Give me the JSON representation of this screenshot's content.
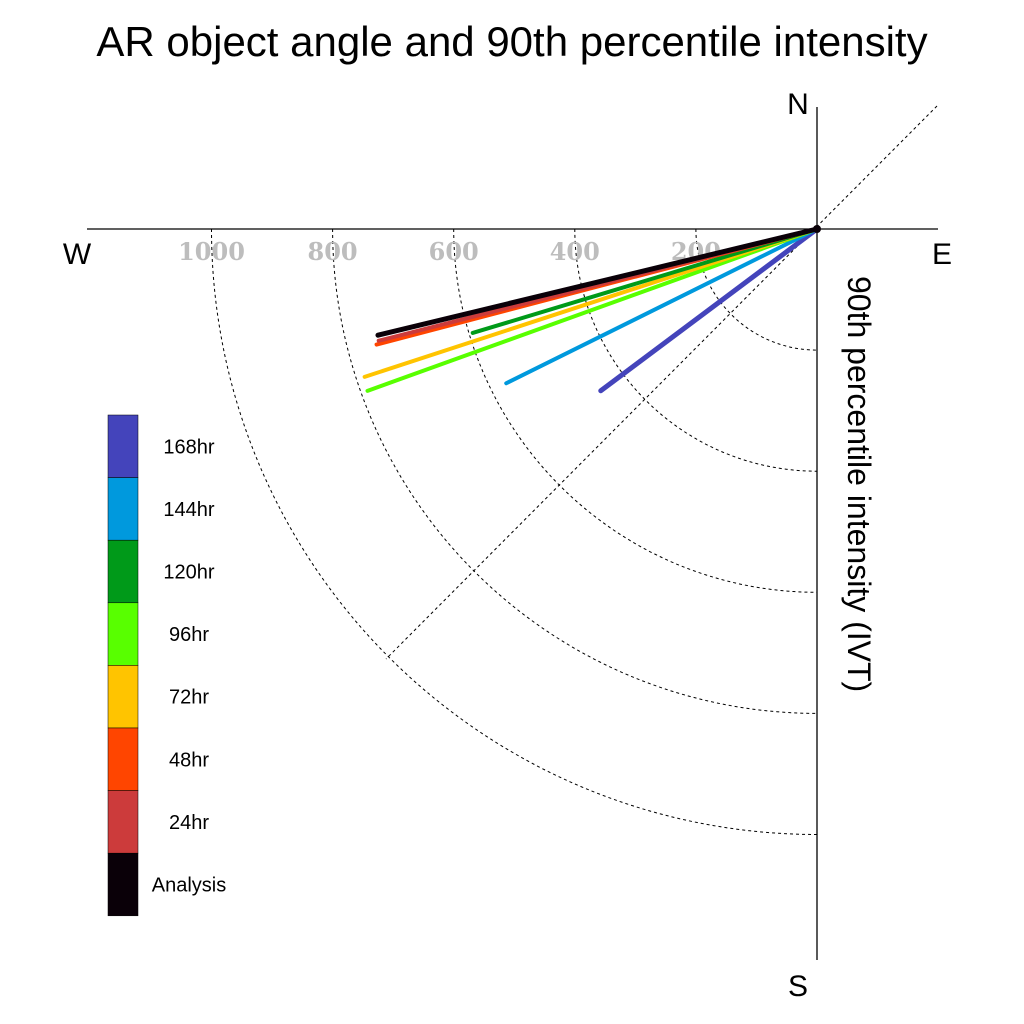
{
  "chart_data": {
    "type": "polar-vector",
    "title": "AR object angle and 90th percentile intensity",
    "radial_label": "90th percentile intensity (IVT)",
    "compass": {
      "north": "N",
      "south": "S",
      "east": "E",
      "west": "W"
    },
    "radial_ticks": [
      200,
      400,
      600,
      800,
      1000
    ],
    "radial_range": [
      0,
      1200
    ],
    "angle_units": "degrees clockwise from north",
    "grid": true,
    "legend_position": "left",
    "series": [
      {
        "name": "Analysis",
        "color": "#0a0008",
        "angle": 256.4,
        "intensity": 746
      },
      {
        "name": "24hr",
        "color": "#cc3b3b",
        "angle": 255.7,
        "intensity": 747
      },
      {
        "name": "48hr",
        "color": "#ff4500",
        "angle": 255.3,
        "intensity": 752
      },
      {
        "name": "72hr",
        "color": "#ffc400",
        "angle": 251.9,
        "intensity": 786
      },
      {
        "name": "96hr",
        "color": "#58ff00",
        "angle": 250.2,
        "intensity": 789
      },
      {
        "name": "120hr",
        "color": "#009a19",
        "angle": 253.2,
        "intensity": 594
      },
      {
        "name": "144hr",
        "color": "#0099dd",
        "angle": 243.6,
        "intensity": 573
      },
      {
        "name": "168hr",
        "color": "#4444bb",
        "angle": 233.2,
        "intensity": 446
      }
    ],
    "legend": [
      "168hr",
      "144hr",
      "120hr",
      "96hr",
      "72hr",
      "48hr",
      "24hr",
      "Analysis"
    ]
  }
}
